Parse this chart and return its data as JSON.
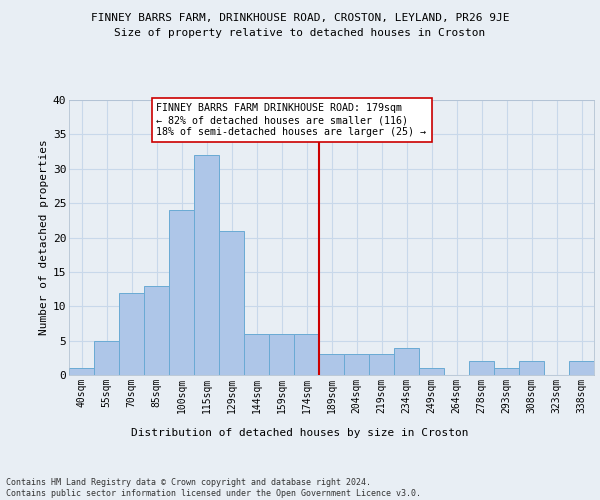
{
  "title_line1": "FINNEY BARRS FARM, DRINKHOUSE ROAD, CROSTON, LEYLAND, PR26 9JE",
  "title_line2": "Size of property relative to detached houses in Croston",
  "xlabel": "Distribution of detached houses by size in Croston",
  "ylabel": "Number of detached properties",
  "categories": [
    "40sqm",
    "55sqm",
    "70sqm",
    "85sqm",
    "100sqm",
    "115sqm",
    "129sqm",
    "144sqm",
    "159sqm",
    "174sqm",
    "189sqm",
    "204sqm",
    "219sqm",
    "234sqm",
    "249sqm",
    "264sqm",
    "278sqm",
    "293sqm",
    "308sqm",
    "323sqm",
    "338sqm"
  ],
  "values": [
    1,
    5,
    12,
    13,
    24,
    32,
    21,
    6,
    6,
    6,
    3,
    3,
    3,
    4,
    1,
    0,
    2,
    1,
    2,
    0,
    2
  ],
  "bar_color": "#aec6e8",
  "bar_edge_color": "#6aaad4",
  "grid_color": "#c8d8ea",
  "vline_color": "#cc0000",
  "annotation_text": "FINNEY BARRS FARM DRINKHOUSE ROAD: 179sqm\n← 82% of detached houses are smaller (116)\n18% of semi-detached houses are larger (25) →",
  "annotation_box_color": "#ffffff",
  "annotation_box_edge": "#cc0000",
  "ylim": [
    0,
    40
  ],
  "yticks": [
    0,
    5,
    10,
    15,
    20,
    25,
    30,
    35,
    40
  ],
  "footer_text": "Contains HM Land Registry data © Crown copyright and database right 2024.\nContains public sector information licensed under the Open Government Licence v3.0.",
  "bg_color": "#e8eef4",
  "plot_bg_color": "#e8eef4"
}
